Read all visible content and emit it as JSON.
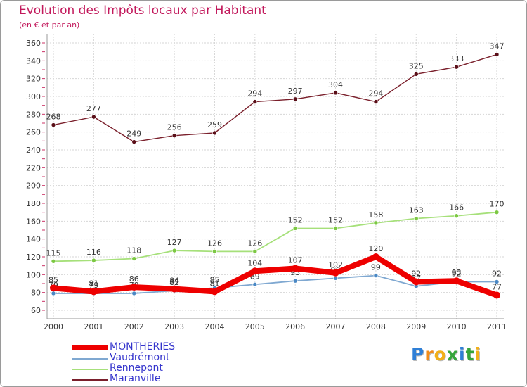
{
  "chart_data": {
    "type": "line",
    "title": "Evolution des Impôts locaux par Habitant",
    "subtitle": "(en € et par an)",
    "categories": [
      "2000",
      "2001",
      "2002",
      "2003",
      "2004",
      "2005",
      "2006",
      "2007",
      "2008",
      "2009",
      "2010",
      "2011"
    ],
    "ylim": [
      60,
      360
    ],
    "yticks": [
      60,
      80,
      100,
      120,
      140,
      160,
      180,
      200,
      220,
      240,
      260,
      280,
      300,
      320,
      340,
      360
    ],
    "series": [
      {
        "name": "Maranville",
        "color": "#7a1f2b",
        "marker": "#5a0f18",
        "values": [
          268,
          277,
          249,
          256,
          259,
          294,
          297,
          304,
          294,
          325,
          333,
          347
        ]
      },
      {
        "name": "Rennepont",
        "color": "#a6e07a",
        "marker": "#7cc843",
        "values": [
          115,
          116,
          118,
          127,
          126,
          126,
          152,
          152,
          158,
          163,
          166,
          170
        ]
      },
      {
        "name": "Vaudrémont",
        "color": "#7fa8d1",
        "marker": "#4a88c4",
        "values": [
          79,
          79,
          79,
          82,
          85,
          89,
          93,
          96,
          99,
          87,
          92,
          92
        ]
      },
      {
        "name": "MONTHERIES",
        "color": "#ee0000",
        "marker": "#ee0000",
        "values": [
          85,
          81,
          86,
          84,
          81,
          104,
          107,
          102,
          120,
          92,
          93,
          77
        ]
      }
    ]
  },
  "legend": [
    "MONTHERIES",
    "Vaudrémont",
    "Rennepont",
    "Maranville"
  ],
  "brand": {
    "letters": [
      "P",
      "r",
      "o",
      "x",
      "i",
      "t",
      "i"
    ],
    "colors": [
      "#2f7fd6",
      "#f28c1a",
      "#f2b01a",
      "#35a53a",
      "#2f7fd6",
      "#35a53a",
      "#f2b01a"
    ]
  }
}
